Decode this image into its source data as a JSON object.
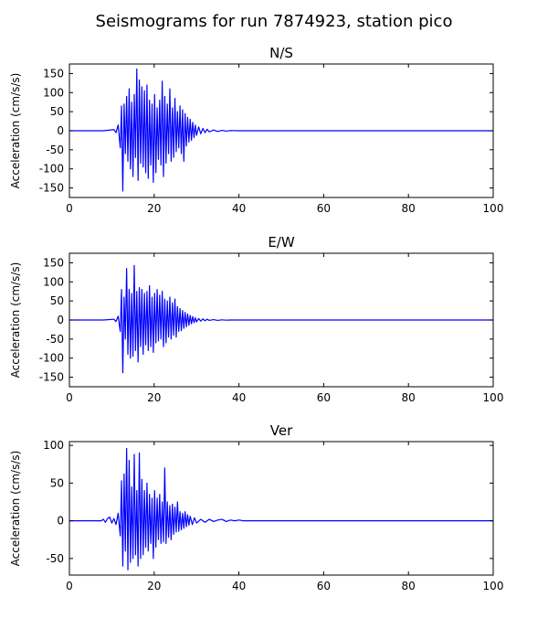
{
  "figure": {
    "suptitle": "Seismograms for run 7874923, station pico"
  },
  "chart_data": [
    {
      "type": "line",
      "title": "N/S",
      "xlabel": "",
      "ylabel": "Acceleration (cm/s/s)",
      "xlim": [
        0,
        100
      ],
      "ylim": [
        -175,
        175
      ],
      "xticks": [
        0,
        20,
        40,
        60,
        80,
        100
      ],
      "yticks": [
        -150,
        -100,
        -50,
        0,
        50,
        100,
        150
      ],
      "grid": false,
      "color": "#0000ff",
      "series": [
        {
          "x": [
            0,
            8,
            10.5,
            11,
            11.5,
            12,
            12.3,
            12.6,
            12.9,
            13.2,
            13.5,
            13.8,
            14.1,
            14.4,
            14.7,
            15,
            15.3,
            15.6,
            15.9,
            16.2,
            16.5,
            16.8,
            17.1,
            17.4,
            17.7,
            18,
            18.3,
            18.6,
            18.9,
            19.2,
            19.5,
            19.8,
            20.1,
            20.4,
            20.7,
            21,
            21.3,
            21.6,
            21.9,
            22.2,
            22.5,
            22.8,
            23.1,
            23.4,
            23.7,
            24,
            24.3,
            24.6,
            24.9,
            25.2,
            25.5,
            25.8,
            26.1,
            26.4,
            26.7,
            27,
            27.3,
            27.6,
            27.9,
            28.2,
            28.5,
            28.8,
            29.1,
            29.4,
            29.7,
            30,
            30.5,
            31,
            31.5,
            32,
            32.5,
            33,
            34,
            35,
            36,
            37,
            38,
            40,
            45,
            100
          ],
          "y": [
            0,
            0,
            3,
            -5,
            15,
            -45,
            65,
            -158,
            70,
            -60,
            90,
            -80,
            110,
            -100,
            75,
            -120,
            95,
            -70,
            162,
            -130,
            133,
            -85,
            115,
            -95,
            105,
            -110,
            120,
            -125,
            80,
            -90,
            70,
            -135,
            95,
            -110,
            60,
            -75,
            80,
            -90,
            130,
            -120,
            90,
            -85,
            70,
            -60,
            110,
            -80,
            60,
            -70,
            85,
            -55,
            50,
            -45,
            65,
            -60,
            55,
            -80,
            45,
            -40,
            35,
            -30,
            30,
            -25,
            22,
            -18,
            15,
            -12,
            10,
            -8,
            6,
            -5,
            4,
            -3,
            2,
            -2,
            1,
            -1,
            0.5,
            0,
            0,
            0
          ]
        }
      ]
    },
    {
      "type": "line",
      "title": "E/W",
      "xlabel": "",
      "ylabel": "Acceleration (cm/s/s)",
      "xlim": [
        0,
        100
      ],
      "ylim": [
        -175,
        175
      ],
      "xticks": [
        0,
        20,
        40,
        60,
        80,
        100
      ],
      "yticks": [
        -150,
        -100,
        -50,
        0,
        50,
        100,
        150
      ],
      "grid": false,
      "color": "#0000ff",
      "series": [
        {
          "x": [
            0,
            8,
            10.5,
            11,
            11.5,
            12,
            12.3,
            12.6,
            12.9,
            13.2,
            13.5,
            13.8,
            14.1,
            14.4,
            14.7,
            15,
            15.3,
            15.6,
            15.9,
            16.2,
            16.5,
            16.8,
            17.1,
            17.4,
            17.7,
            18,
            18.3,
            18.6,
            18.9,
            19.2,
            19.5,
            19.8,
            20.1,
            20.4,
            20.7,
            21,
            21.3,
            21.6,
            21.9,
            22.2,
            22.5,
            22.8,
            23.1,
            23.4,
            23.7,
            24,
            24.3,
            24.6,
            24.9,
            25.2,
            25.5,
            25.8,
            26.1,
            26.4,
            26.7,
            27,
            27.3,
            27.6,
            27.9,
            28.2,
            28.5,
            28.8,
            29.1,
            29.4,
            29.7,
            30,
            30.5,
            31,
            31.5,
            32,
            32.5,
            33,
            34,
            35,
            36,
            37,
            38,
            40,
            45,
            100
          ],
          "y": [
            0,
            0,
            2,
            -4,
            10,
            -30,
            80,
            -138,
            60,
            -50,
            135,
            -90,
            80,
            -100,
            70,
            -95,
            143,
            -80,
            75,
            -110,
            85,
            -70,
            80,
            -90,
            70,
            -65,
            75,
            -80,
            90,
            -70,
            60,
            -85,
            70,
            -60,
            80,
            -55,
            65,
            -50,
            75,
            -70,
            55,
            -60,
            50,
            -45,
            60,
            -50,
            45,
            -40,
            55,
            -45,
            35,
            -30,
            30,
            -28,
            25,
            -22,
            20,
            -18,
            16,
            -14,
            12,
            -10,
            9,
            -7,
            6,
            -5,
            4,
            -3,
            3,
            -2,
            2,
            -1,
            1,
            -1,
            0.5,
            -0.5,
            0,
            0,
            0,
            0
          ]
        }
      ]
    },
    {
      "type": "line",
      "title": "Ver",
      "xlabel": "",
      "ylabel": "Acceleration (cm/s/s)",
      "xlim": [
        0,
        100
      ],
      "ylim": [
        -72,
        105
      ],
      "xticks": [
        0,
        20,
        40,
        60,
        80,
        100
      ],
      "yticks": [
        -50,
        0,
        50,
        100
      ],
      "grid": false,
      "color": "#0000ff",
      "series": [
        {
          "x": [
            0,
            7.5,
            8,
            8.5,
            9,
            9.5,
            10,
            10.5,
            11,
            11.5,
            12,
            12.3,
            12.6,
            12.9,
            13.2,
            13.5,
            13.8,
            14.1,
            14.4,
            14.7,
            15,
            15.3,
            15.6,
            15.9,
            16.2,
            16.5,
            16.8,
            17.1,
            17.4,
            17.7,
            18,
            18.3,
            18.6,
            18.9,
            19.2,
            19.5,
            19.8,
            20.1,
            20.4,
            20.7,
            21,
            21.3,
            21.6,
            21.9,
            22.2,
            22.5,
            22.8,
            23.1,
            23.4,
            23.7,
            24,
            24.3,
            24.6,
            24.9,
            25.2,
            25.5,
            25.8,
            26.1,
            26.4,
            26.7,
            27,
            27.3,
            27.6,
            27.9,
            28.2,
            28.5,
            29,
            29.5,
            30,
            31,
            32,
            33,
            34,
            35,
            36,
            37,
            38,
            39,
            40,
            41,
            42,
            100
          ],
          "y": [
            0,
            0,
            2,
            -2,
            3,
            5,
            -3,
            3,
            -5,
            10,
            -20,
            53,
            -60,
            62,
            -40,
            96,
            -65,
            80,
            -55,
            45,
            -50,
            88,
            -45,
            40,
            -60,
            90,
            -50,
            55,
            -45,
            40,
            -35,
            50,
            -40,
            35,
            -30,
            30,
            -50,
            40,
            -35,
            30,
            -25,
            35,
            -30,
            25,
            -28,
            70,
            -30,
            25,
            -22,
            20,
            -25,
            22,
            -18,
            18,
            -15,
            25,
            -14,
            12,
            -12,
            10,
            -10,
            12,
            -8,
            8,
            -6,
            6,
            -5,
            4,
            -3,
            2,
            -2,
            2,
            -1,
            1,
            2,
            -1,
            1,
            0,
            1,
            0,
            0,
            0
          ]
        }
      ]
    }
  ]
}
